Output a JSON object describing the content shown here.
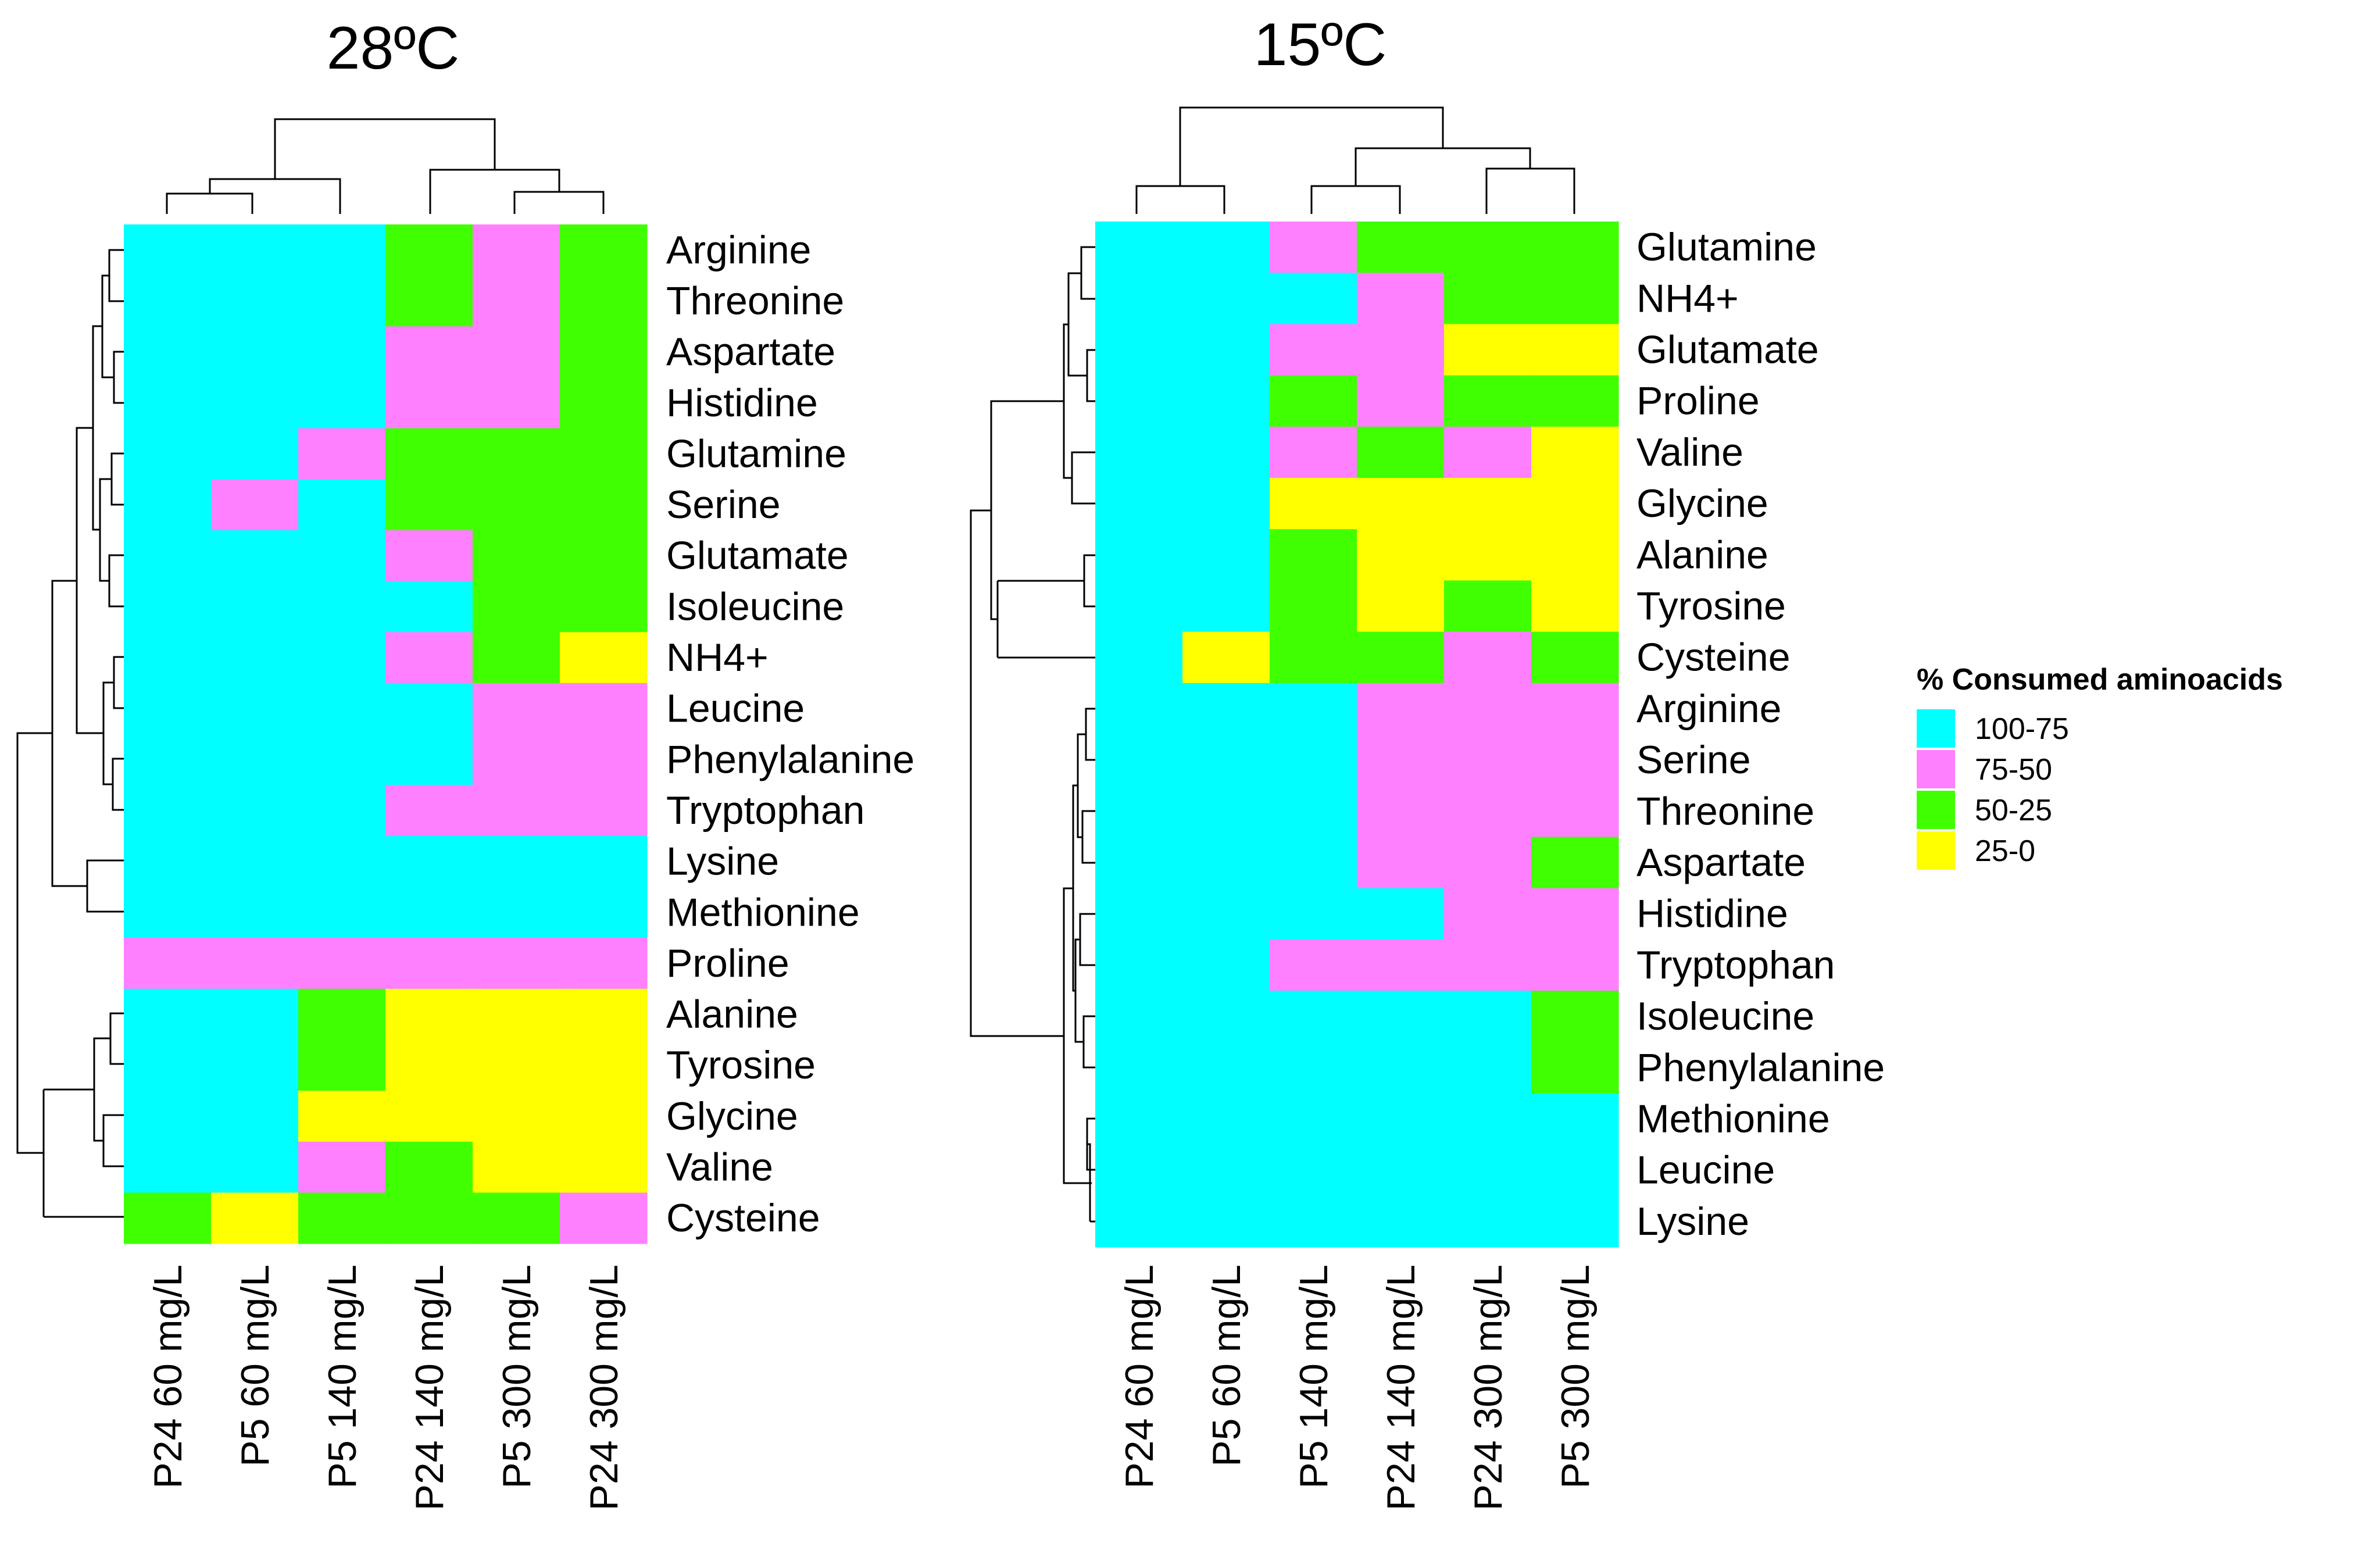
{
  "legend": {
    "title": "% Consumed aminoacids",
    "items": [
      {
        "key": "c",
        "label": "100-75",
        "color": "#00FFFF"
      },
      {
        "key": "m",
        "label": "75-50",
        "color": "#FF80FF"
      },
      {
        "key": "g",
        "label": "50-25",
        "color": "#40FF00"
      },
      {
        "key": "y",
        "label": "25-0",
        "color": "#FFFF00"
      }
    ]
  },
  "chart_data": [
    {
      "type": "heatmap",
      "title": "28ºC",
      "columns": [
        "P24 60 mg/L",
        "P5 60 mg/L",
        "P5 140 mg/L",
        "P24 140 mg/L",
        "P5 300 mg/L",
        "P24 300 mg/L"
      ],
      "rows": [
        "Arginine",
        "Threonine",
        "Aspartate",
        "Histidine",
        "Glutamine",
        "Serine",
        "Glutamate",
        "Isoleucine",
        "NH4+",
        "Leucine",
        "Phenylalanine",
        "Tryptophan",
        "Lysine",
        "Methionine",
        "Proline",
        "Alanine",
        "Tyrosine",
        "Glycine",
        "Valine",
        "Cysteine"
      ],
      "values": [
        [
          "c",
          "c",
          "c",
          "g",
          "m",
          "g"
        ],
        [
          "c",
          "c",
          "c",
          "g",
          "m",
          "g"
        ],
        [
          "c",
          "c",
          "c",
          "m",
          "m",
          "g"
        ],
        [
          "c",
          "c",
          "c",
          "m",
          "m",
          "g"
        ],
        [
          "c",
          "c",
          "m",
          "g",
          "g",
          "g"
        ],
        [
          "c",
          "m",
          "c",
          "g",
          "g",
          "g"
        ],
        [
          "c",
          "c",
          "c",
          "m",
          "g",
          "g"
        ],
        [
          "c",
          "c",
          "c",
          "c",
          "g",
          "g"
        ],
        [
          "c",
          "c",
          "c",
          "m",
          "g",
          "y"
        ],
        [
          "c",
          "c",
          "c",
          "c",
          "m",
          "m"
        ],
        [
          "c",
          "c",
          "c",
          "c",
          "m",
          "m"
        ],
        [
          "c",
          "c",
          "c",
          "m",
          "m",
          "m"
        ],
        [
          "c",
          "c",
          "c",
          "c",
          "c",
          "c"
        ],
        [
          "c",
          "c",
          "c",
          "c",
          "c",
          "c"
        ],
        [
          "m",
          "m",
          "m",
          "m",
          "m",
          "m"
        ],
        [
          "c",
          "c",
          "g",
          "y",
          "y",
          "y"
        ],
        [
          "c",
          "c",
          "g",
          "y",
          "y",
          "y"
        ],
        [
          "c",
          "c",
          "y",
          "y",
          "y",
          "y"
        ],
        [
          "c",
          "c",
          "m",
          "g",
          "y",
          "y"
        ],
        [
          "g",
          "y",
          "g",
          "g",
          "g",
          "m"
        ]
      ]
    },
    {
      "type": "heatmap",
      "title": "15ºC",
      "columns": [
        "P24 60 mg/L",
        "P5 60 mg/L",
        "P5 140 mg/L",
        "P24 140 mg/L",
        "P24 300 mg/L",
        "P5 300 mg/L"
      ],
      "rows": [
        "Glutamine",
        "NH4+",
        "Glutamate",
        "Proline",
        "Valine",
        "Glycine",
        "Alanine",
        "Tyrosine",
        "Cysteine",
        "Arginine",
        "Serine",
        "Threonine",
        "Aspartate",
        "Histidine",
        "Tryptophan",
        "Isoleucine",
        "Phenylalanine",
        "Methionine",
        "Leucine",
        "Lysine"
      ],
      "values": [
        [
          "c",
          "c",
          "m",
          "g",
          "g",
          "g"
        ],
        [
          "c",
          "c",
          "c",
          "m",
          "g",
          "g"
        ],
        [
          "c",
          "c",
          "m",
          "m",
          "y",
          "y"
        ],
        [
          "c",
          "c",
          "g",
          "m",
          "g",
          "g"
        ],
        [
          "c",
          "c",
          "m",
          "g",
          "m",
          "y"
        ],
        [
          "c",
          "c",
          "y",
          "y",
          "y",
          "y"
        ],
        [
          "c",
          "c",
          "g",
          "y",
          "y",
          "y"
        ],
        [
          "c",
          "c",
          "g",
          "y",
          "g",
          "y"
        ],
        [
          "c",
          "y",
          "g",
          "g",
          "m",
          "g"
        ],
        [
          "c",
          "c",
          "c",
          "m",
          "m",
          "m"
        ],
        [
          "c",
          "c",
          "c",
          "m",
          "m",
          "m"
        ],
        [
          "c",
          "c",
          "c",
          "m",
          "m",
          "m"
        ],
        [
          "c",
          "c",
          "c",
          "m",
          "m",
          "g"
        ],
        [
          "c",
          "c",
          "c",
          "c",
          "m",
          "m"
        ],
        [
          "c",
          "c",
          "m",
          "m",
          "m",
          "m"
        ],
        [
          "c",
          "c",
          "c",
          "c",
          "c",
          "g"
        ],
        [
          "c",
          "c",
          "c",
          "c",
          "c",
          "g"
        ],
        [
          "c",
          "c",
          "c",
          "c",
          "c",
          "c"
        ],
        [
          "c",
          "c",
          "c",
          "c",
          "c",
          "c"
        ],
        [
          "c",
          "c",
          "c",
          "c",
          "c",
          "c"
        ]
      ]
    }
  ]
}
